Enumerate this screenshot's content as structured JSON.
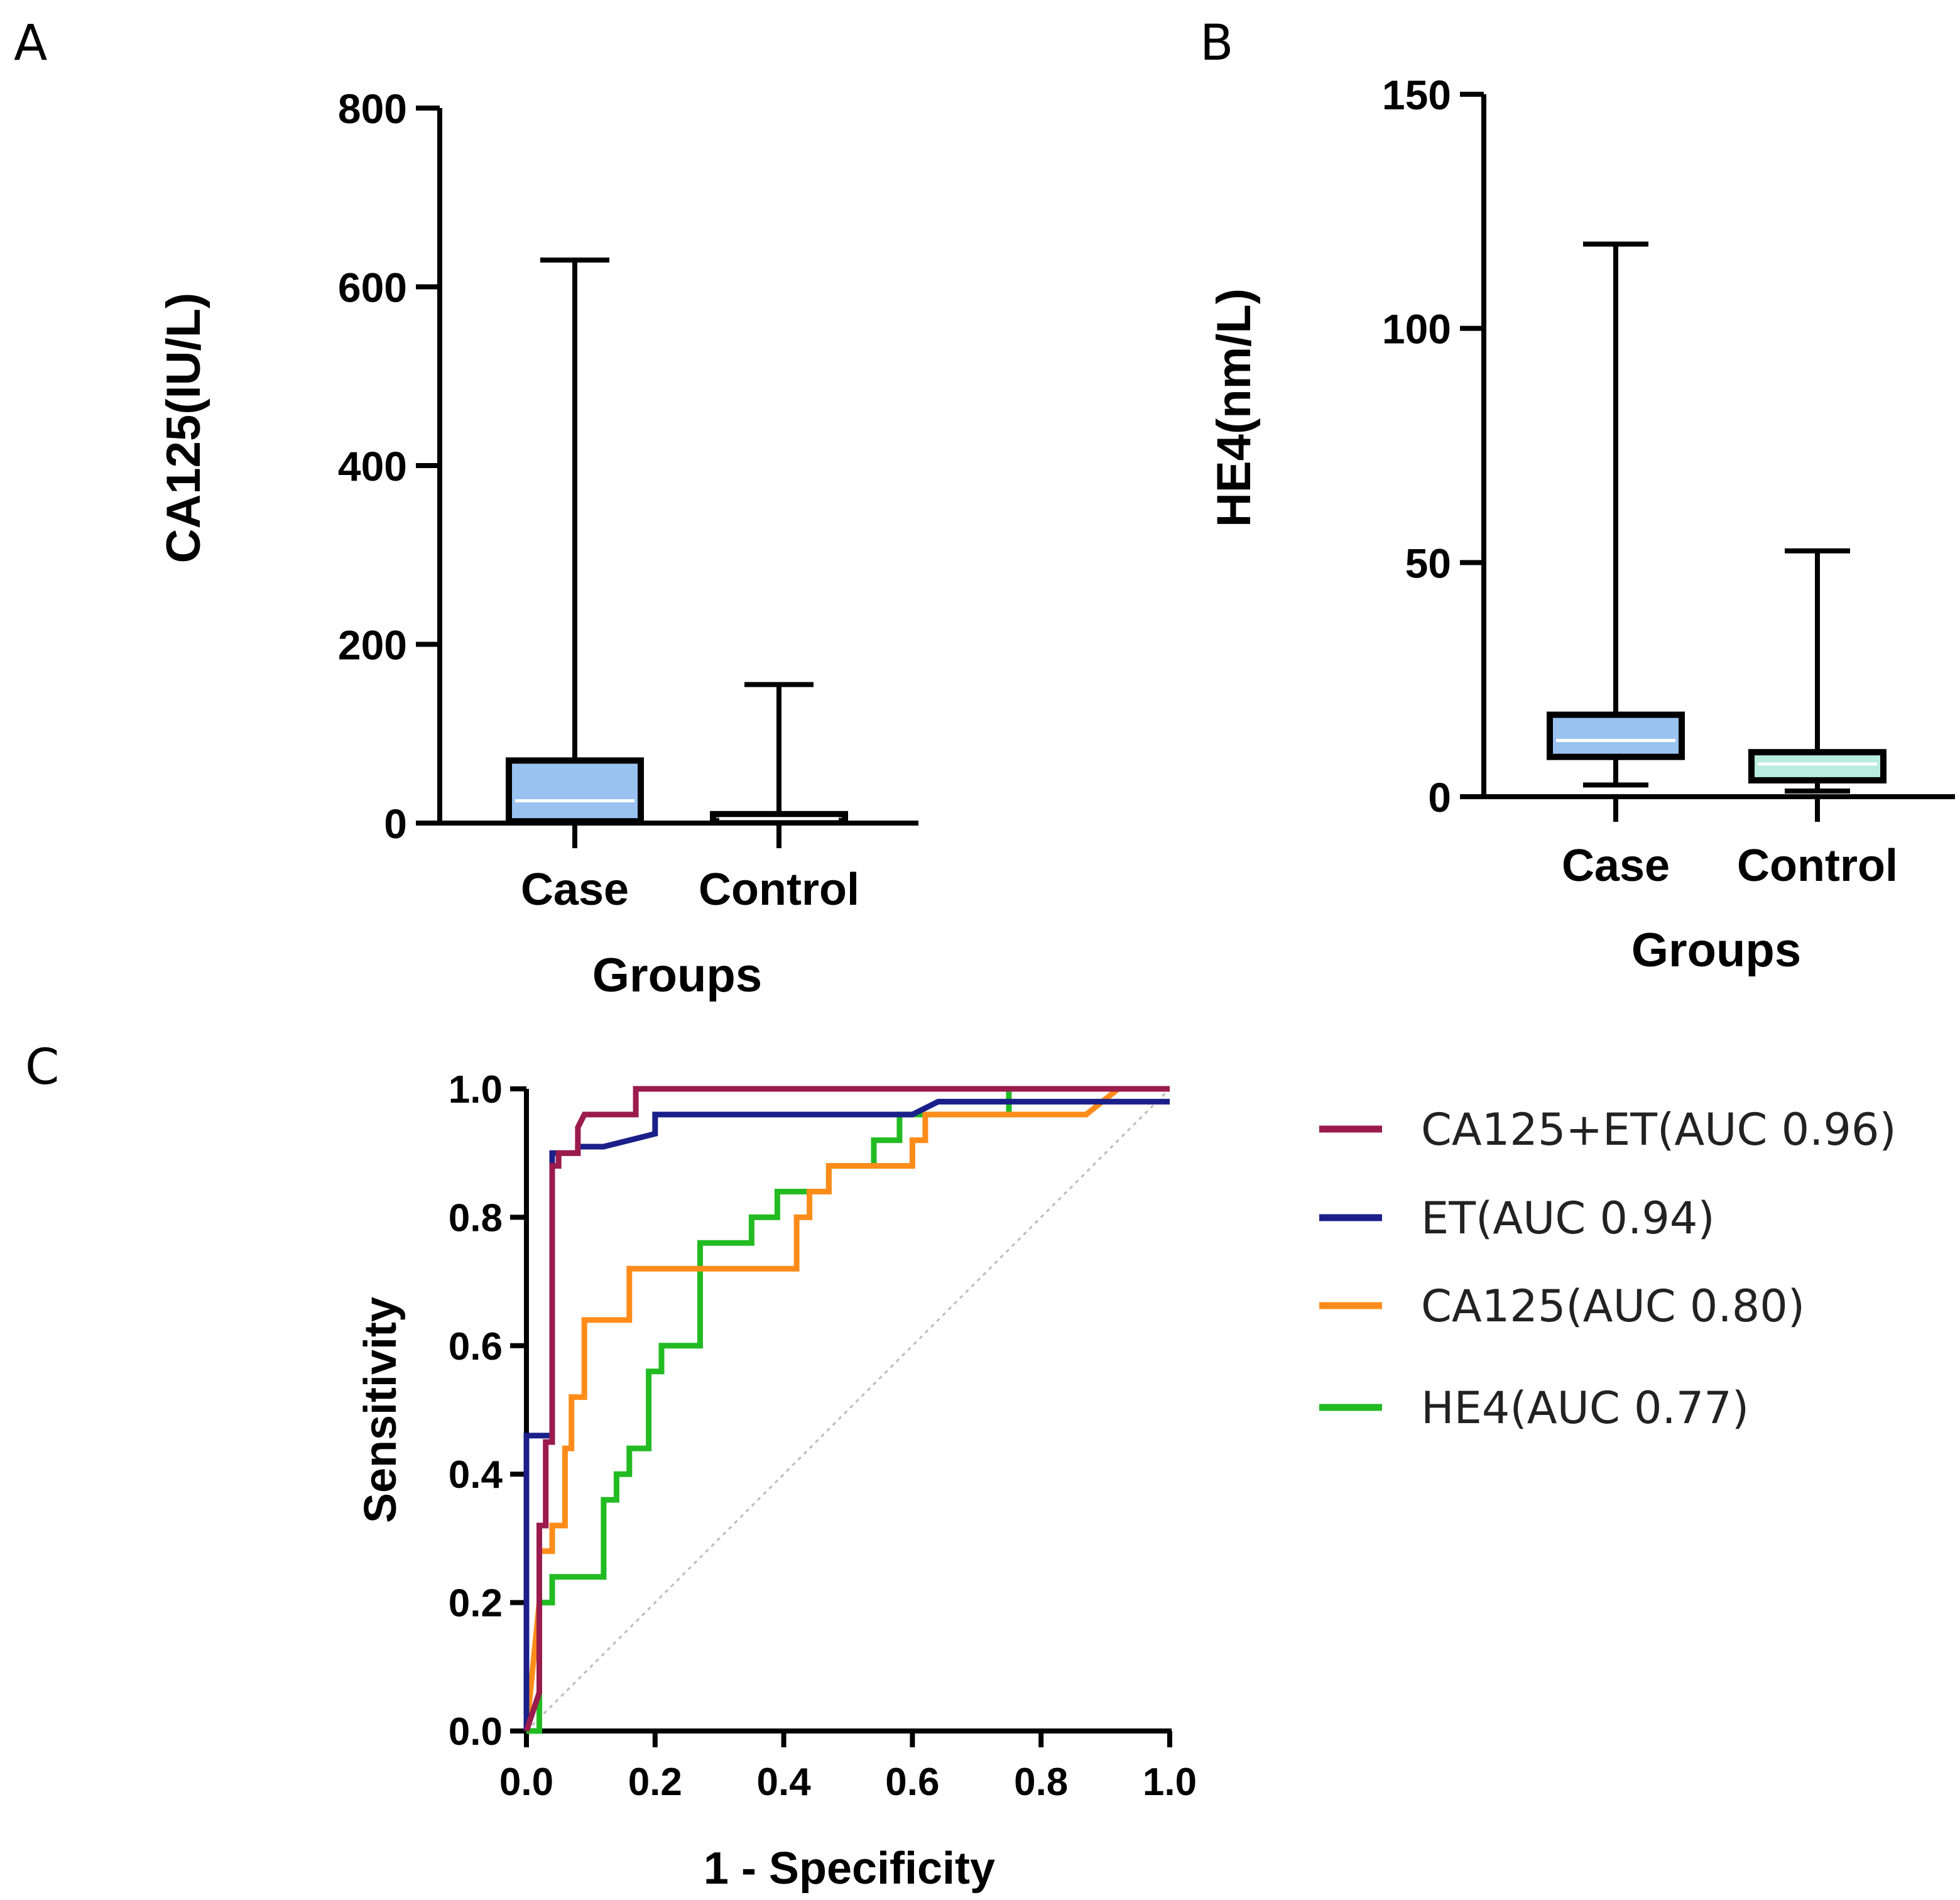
{
  "panels": {
    "a": {
      "label": "A"
    },
    "b": {
      "label": "B"
    },
    "c": {
      "label": "C"
    }
  },
  "chart_data": [
    {
      "id": "A",
      "type": "box",
      "title": "",
      "xlabel": "Groups",
      "ylabel": "CA125(IU/L)",
      "ylim": [
        0,
        800
      ],
      "yticks": [
        0,
        200,
        400,
        600,
        800
      ],
      "categories": [
        "Case",
        "Control"
      ],
      "boxes": [
        {
          "name": "Case",
          "min": 0,
          "q1": 2,
          "median": 25,
          "q3": 70,
          "max": 630,
          "color": "#99c2f0"
        },
        {
          "name": "Control",
          "min": 0,
          "q1": 2,
          "median": 5,
          "q3": 10,
          "max": 155,
          "color": "#c5e8f5"
        }
      ]
    },
    {
      "id": "B",
      "type": "box",
      "title": "",
      "xlabel": "Groups",
      "ylabel": "HE4(nm/L)",
      "ylim": [
        0,
        150
      ],
      "yticks": [
        0,
        50,
        100,
        150
      ],
      "categories": [
        "Case",
        "Control"
      ],
      "boxes": [
        {
          "name": "Case",
          "min": 2.5,
          "q1": 8.5,
          "median": 12,
          "q3": 17.5,
          "max": 118,
          "color": "#99c2f0"
        },
        {
          "name": "Control",
          "min": 1.2,
          "q1": 3.5,
          "median": 7,
          "q3": 9.5,
          "max": 52.5,
          "color": "#b8ecde"
        }
      ]
    },
    {
      "id": "C",
      "type": "line",
      "title": "",
      "xlabel": "1 - Specificity",
      "ylabel": "Sensitivity",
      "xlim": [
        0,
        1
      ],
      "ylim": [
        0,
        1
      ],
      "xticks": [
        "0.0",
        "0.2",
        "0.4",
        "0.6",
        "0.8",
        "1.0"
      ],
      "yticks": [
        "0.0",
        "0.2",
        "0.4",
        "0.6",
        "0.8",
        "1.0"
      ],
      "reference_line": {
        "from": [
          0,
          0
        ],
        "to": [
          1,
          1
        ],
        "style": "dotted",
        "color": "#bbbbbb"
      },
      "series": [
        {
          "name": "CA125+ET(AUC 0.96)",
          "color": "#9b1b4d",
          "x": [
            0,
            0.02,
            0.02,
            0.03,
            0.03,
            0.04,
            0.04,
            0.05,
            0.05,
            0.06,
            0.08,
            0.08,
            0.09,
            0.14,
            0.17,
            0.17,
            0.5,
            0.75,
            1.0
          ],
          "y": [
            0,
            0.06,
            0.32,
            0.32,
            0.45,
            0.45,
            0.88,
            0.88,
            0.9,
            0.9,
            0.9,
            0.94,
            0.96,
            0.96,
            0.96,
            1.0,
            1.0,
            1.0,
            1.0
          ]
        },
        {
          "name": "ET(AUC 0.94)",
          "color": "#1a1f8a",
          "x": [
            0,
            0,
            0.04,
            0.04,
            0.08,
            0.08,
            0.12,
            0.2,
            0.2,
            0.6,
            0.64,
            0.82,
            1.0
          ],
          "y": [
            0,
            0.46,
            0.46,
            0.9,
            0.9,
            0.91,
            0.91,
            0.93,
            0.96,
            0.96,
            0.98,
            0.98,
            0.98
          ]
        },
        {
          "name": "CA125(AUC 0.80)",
          "color": "#ff8c1a",
          "x": [
            0,
            0.02,
            0.02,
            0.04,
            0.04,
            0.06,
            0.06,
            0.07,
            0.07,
            0.09,
            0.09,
            0.16,
            0.16,
            0.42,
            0.42,
            0.44,
            0.44,
            0.47,
            0.47,
            0.6,
            0.6,
            0.62,
            0.62,
            0.66,
            0.66,
            0.87,
            0.92,
            1.0
          ],
          "y": [
            0,
            0.2,
            0.28,
            0.28,
            0.32,
            0.32,
            0.44,
            0.44,
            0.52,
            0.52,
            0.64,
            0.64,
            0.72,
            0.72,
            0.8,
            0.8,
            0.84,
            0.84,
            0.88,
            0.88,
            0.92,
            0.92,
            0.96,
            0.96,
            0.96,
            0.96,
            1.0,
            1.0
          ]
        },
        {
          "name": "HE4(AUC 0.77)",
          "color": "#22bb22",
          "x": [
            0,
            0.02,
            0.02,
            0.04,
            0.04,
            0.07,
            0.07,
            0.12,
            0.12,
            0.14,
            0.14,
            0.16,
            0.16,
            0.19,
            0.19,
            0.21,
            0.21,
            0.23,
            0.23,
            0.27,
            0.27,
            0.35,
            0.35,
            0.39,
            0.39,
            0.47,
            0.47,
            0.54,
            0.54,
            0.58,
            0.58,
            0.75,
            0.75,
            1.0
          ],
          "y": [
            0,
            0,
            0.2,
            0.2,
            0.24,
            0.24,
            0.24,
            0.24,
            0.36,
            0.36,
            0.4,
            0.4,
            0.44,
            0.44,
            0.56,
            0.56,
            0.6,
            0.6,
            0.6,
            0.6,
            0.76,
            0.76,
            0.8,
            0.8,
            0.84,
            0.84,
            0.88,
            0.88,
            0.92,
            0.92,
            0.96,
            0.96,
            1.0,
            1.0
          ]
        }
      ]
    }
  ]
}
